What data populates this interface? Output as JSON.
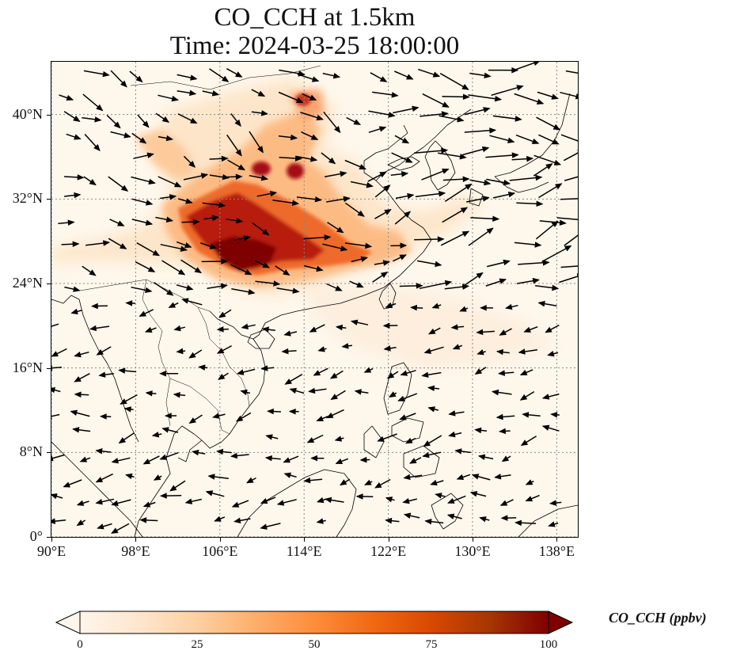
{
  "title": {
    "line1": "CO_CCH at 1.5km",
    "line2": "Time: 2024-03-25 18:00:00"
  },
  "map": {
    "lon_range": [
      90,
      140
    ],
    "lat_range": [
      0,
      45
    ],
    "background_color": "#fef7ec",
    "coastline_color": "#000000",
    "gridline_color": "#888888",
    "vector_color": "#000000",
    "x_ticks": [
      {
        "lon": 90,
        "label": "90°E"
      },
      {
        "lon": 98,
        "label": "98°E"
      },
      {
        "lon": 106,
        "label": "106°E"
      },
      {
        "lon": 114,
        "label": "114°E"
      },
      {
        "lon": 122,
        "label": "122°E"
      },
      {
        "lon": 130,
        "label": "130°E"
      },
      {
        "lon": 138,
        "label": "138°E"
      }
    ],
    "y_ticks": [
      {
        "lat": 0,
        "label": "0°"
      },
      {
        "lat": 8,
        "label": "8°N"
      },
      {
        "lat": 16,
        "label": "16°N"
      },
      {
        "lat": 24,
        "label": "24°N"
      },
      {
        "lat": 32,
        "label": "32°N"
      },
      {
        "lat": 40,
        "label": "40°N"
      }
    ]
  },
  "colorbar": {
    "label": "CO_CCH (ppbv)",
    "min": 0,
    "max": 100,
    "extend": "both",
    "ticks": [
      {
        "value": 0,
        "label": "0"
      },
      {
        "value": 25,
        "label": "25"
      },
      {
        "value": 50,
        "label": "50"
      },
      {
        "value": 75,
        "label": "75"
      },
      {
        "value": 100,
        "label": "100"
      }
    ],
    "colors": [
      "#fff5eb",
      "#fee6ce",
      "#fdd0a2",
      "#fdae6b",
      "#fd8d3c",
      "#f16913",
      "#d94801",
      "#a63603",
      "#7f0000"
    ]
  }
}
